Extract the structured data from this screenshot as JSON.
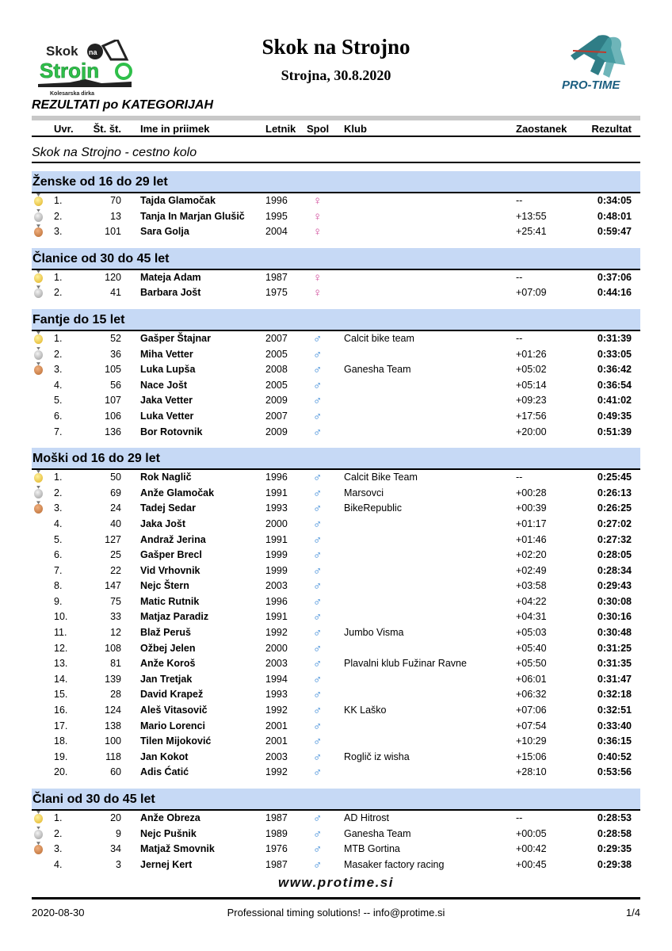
{
  "header": {
    "title": "Skok na Strojno",
    "subtitle": "Strojna, 30.8.2020",
    "report_title": "REZULTATI po KATEGORIJAH",
    "left_logo": {
      "line1": "Skok",
      "badge": "na",
      "line2": "Strojno",
      "tagline": "Kolesarska dirka"
    },
    "right_logo": {
      "text": "PRO-TIME"
    }
  },
  "columns": {
    "rank": "Uvr.",
    "bib": "Št. št.",
    "name": "Ime in priimek",
    "year": "Letnik",
    "sex": "Spol",
    "club": "Klub",
    "gap": "Zaostanek",
    "result": "Rezultat"
  },
  "race_name": "Skok na Strojno - cestno kolo",
  "colors": {
    "category_bg": "#c6d9f5",
    "female": "#d0489a",
    "male": "#2a7fd4"
  },
  "categories": [
    {
      "name": "Ženske od 16 do 29 let",
      "rows": [
        {
          "rank": "1.",
          "bib": "70",
          "name": "Tajda Glamočak",
          "year": "1996",
          "sex": "F",
          "club": "",
          "gap": "--",
          "result": "0:34:05"
        },
        {
          "rank": "2.",
          "bib": "13",
          "name": "Tanja In Marjan Glušič",
          "year": "1995",
          "sex": "F",
          "club": "",
          "gap": "+13:55",
          "result": "0:48:01"
        },
        {
          "rank": "3.",
          "bib": "101",
          "name": "Sara Golja",
          "year": "2004",
          "sex": "F",
          "club": "",
          "gap": "+25:41",
          "result": "0:59:47"
        }
      ]
    },
    {
      "name": "Članice od 30 do 45 let",
      "rows": [
        {
          "rank": "1.",
          "bib": "120",
          "name": "Mateja Adam",
          "year": "1987",
          "sex": "F",
          "club": "",
          "gap": "--",
          "result": "0:37:06"
        },
        {
          "rank": "2.",
          "bib": "41",
          "name": "Barbara Jošt",
          "year": "1975",
          "sex": "F",
          "club": "",
          "gap": "+07:09",
          "result": "0:44:16"
        }
      ]
    },
    {
      "name": "Fantje do 15 let",
      "rows": [
        {
          "rank": "1.",
          "bib": "52",
          "name": "Gašper Štajnar",
          "year": "2007",
          "sex": "M",
          "club": "Calcit bike team",
          "gap": "--",
          "result": "0:31:39"
        },
        {
          "rank": "2.",
          "bib": "36",
          "name": "Miha Vetter",
          "year": "2005",
          "sex": "M",
          "club": "",
          "gap": "+01:26",
          "result": "0:33:05"
        },
        {
          "rank": "3.",
          "bib": "105",
          "name": "Luka Lupša",
          "year": "2008",
          "sex": "M",
          "club": "Ganesha Team",
          "gap": "+05:02",
          "result": "0:36:42"
        },
        {
          "rank": "4.",
          "bib": "56",
          "name": "Nace Jošt",
          "year": "2005",
          "sex": "M",
          "club": "",
          "gap": "+05:14",
          "result": "0:36:54"
        },
        {
          "rank": "5.",
          "bib": "107",
          "name": "Jaka Vetter",
          "year": "2009",
          "sex": "M",
          "club": "",
          "gap": "+09:23",
          "result": "0:41:02"
        },
        {
          "rank": "6.",
          "bib": "106",
          "name": "Luka Vetter",
          "year": "2007",
          "sex": "M",
          "club": "",
          "gap": "+17:56",
          "result": "0:49:35"
        },
        {
          "rank": "7.",
          "bib": "136",
          "name": "Bor Rotovnik",
          "year": "2009",
          "sex": "M",
          "club": "",
          "gap": "+20:00",
          "result": "0:51:39"
        }
      ]
    },
    {
      "name": "Moški od 16 do 29 let",
      "rows": [
        {
          "rank": "1.",
          "bib": "50",
          "name": "Rok Naglič",
          "year": "1996",
          "sex": "M",
          "club": "Calcit Bike Team",
          "gap": "--",
          "result": "0:25:45"
        },
        {
          "rank": "2.",
          "bib": "69",
          "name": "Anže Glamočak",
          "year": "1991",
          "sex": "M",
          "club": "Marsovci",
          "gap": "+00:28",
          "result": "0:26:13"
        },
        {
          "rank": "3.",
          "bib": "24",
          "name": "Tadej Sedar",
          "year": "1993",
          "sex": "M",
          "club": "BikeRepublic",
          "gap": "+00:39",
          "result": "0:26:25"
        },
        {
          "rank": "4.",
          "bib": "40",
          "name": "Jaka Jošt",
          "year": "2000",
          "sex": "M",
          "club": "",
          "gap": "+01:17",
          "result": "0:27:02"
        },
        {
          "rank": "5.",
          "bib": "127",
          "name": "Andraž Jerina",
          "year": "1991",
          "sex": "M",
          "club": "",
          "gap": "+01:46",
          "result": "0:27:32"
        },
        {
          "rank": "6.",
          "bib": "25",
          "name": "Gašper Brecl",
          "year": "1999",
          "sex": "M",
          "club": "",
          "gap": "+02:20",
          "result": "0:28:05"
        },
        {
          "rank": "7.",
          "bib": "22",
          "name": "Vid Vrhovnik",
          "year": "1999",
          "sex": "M",
          "club": "",
          "gap": "+02:49",
          "result": "0:28:34"
        },
        {
          "rank": "8.",
          "bib": "147",
          "name": "Nejc Štern",
          "year": "2003",
          "sex": "M",
          "club": "",
          "gap": "+03:58",
          "result": "0:29:43"
        },
        {
          "rank": "9.",
          "bib": "75",
          "name": "Matic Rutnik",
          "year": "1996",
          "sex": "M",
          "club": "",
          "gap": "+04:22",
          "result": "0:30:08"
        },
        {
          "rank": "10.",
          "bib": "33",
          "name": "Matjaz Paradiz",
          "year": "1991",
          "sex": "M",
          "club": "",
          "gap": "+04:31",
          "result": "0:30:16"
        },
        {
          "rank": "11.",
          "bib": "12",
          "name": "Blaž Peruš",
          "year": "1992",
          "sex": "M",
          "club": "Jumbo Visma",
          "gap": "+05:03",
          "result": "0:30:48"
        },
        {
          "rank": "12.",
          "bib": "108",
          "name": "Ožbej Jelen",
          "year": "2000",
          "sex": "M",
          "club": "",
          "gap": "+05:40",
          "result": "0:31:25"
        },
        {
          "rank": "13.",
          "bib": "81",
          "name": "Anže Koroš",
          "year": "2003",
          "sex": "M",
          "club": "Plavalni klub Fužinar Ravne",
          "gap": "+05:50",
          "result": "0:31:35"
        },
        {
          "rank": "14.",
          "bib": "139",
          "name": "Jan Tretjak",
          "year": "1994",
          "sex": "M",
          "club": "",
          "gap": "+06:01",
          "result": "0:31:47"
        },
        {
          "rank": "15.",
          "bib": "28",
          "name": "David Krapež",
          "year": "1993",
          "sex": "M",
          "club": "",
          "gap": "+06:32",
          "result": "0:32:18"
        },
        {
          "rank": "16.",
          "bib": "124",
          "name": "Aleš Vitasovič",
          "year": "1992",
          "sex": "M",
          "club": "KK Laško",
          "gap": "+07:06",
          "result": "0:32:51"
        },
        {
          "rank": "17.",
          "bib": "138",
          "name": "Mario Lorenci",
          "year": "2001",
          "sex": "M",
          "club": "",
          "gap": "+07:54",
          "result": "0:33:40"
        },
        {
          "rank": "18.",
          "bib": "100",
          "name": "Tilen Mijoković",
          "year": "2001",
          "sex": "M",
          "club": "",
          "gap": "+10:29",
          "result": "0:36:15"
        },
        {
          "rank": "19.",
          "bib": "118",
          "name": "Jan Kokot",
          "year": "2003",
          "sex": "M",
          "club": "Roglič iz wisha",
          "gap": "+15:06",
          "result": "0:40:52"
        },
        {
          "rank": "20.",
          "bib": "60",
          "name": "Adis Ćatić",
          "year": "1992",
          "sex": "M",
          "club": "",
          "gap": "+28:10",
          "result": "0:53:56"
        }
      ]
    },
    {
      "name": "Člani od 30 do 45 let",
      "rows": [
        {
          "rank": "1.",
          "bib": "20",
          "name": "Anže Obreza",
          "year": "1987",
          "sex": "M",
          "club": "AD Hitrost",
          "gap": "--",
          "result": "0:28:53"
        },
        {
          "rank": "2.",
          "bib": "9",
          "name": "Nejc Pušnik",
          "year": "1989",
          "sex": "M",
          "club": "Ganesha Team",
          "gap": "+00:05",
          "result": "0:28:58"
        },
        {
          "rank": "3.",
          "bib": "34",
          "name": "Matjaž Smovnik",
          "year": "1976",
          "sex": "M",
          "club": "MTB Gortina",
          "gap": "+00:42",
          "result": "0:29:35"
        },
        {
          "rank": "4.",
          "bib": "3",
          "name": "Jernej Kert",
          "year": "1987",
          "sex": "M",
          "club": "Masaker factory racing",
          "gap": "+00:45",
          "result": "0:29:38"
        }
      ]
    }
  ],
  "footer": {
    "website": "www.protime.si",
    "date": "2020-08-30",
    "tagline": "Professional timing solutions!  --  info@protime.si",
    "page": "1/4"
  }
}
